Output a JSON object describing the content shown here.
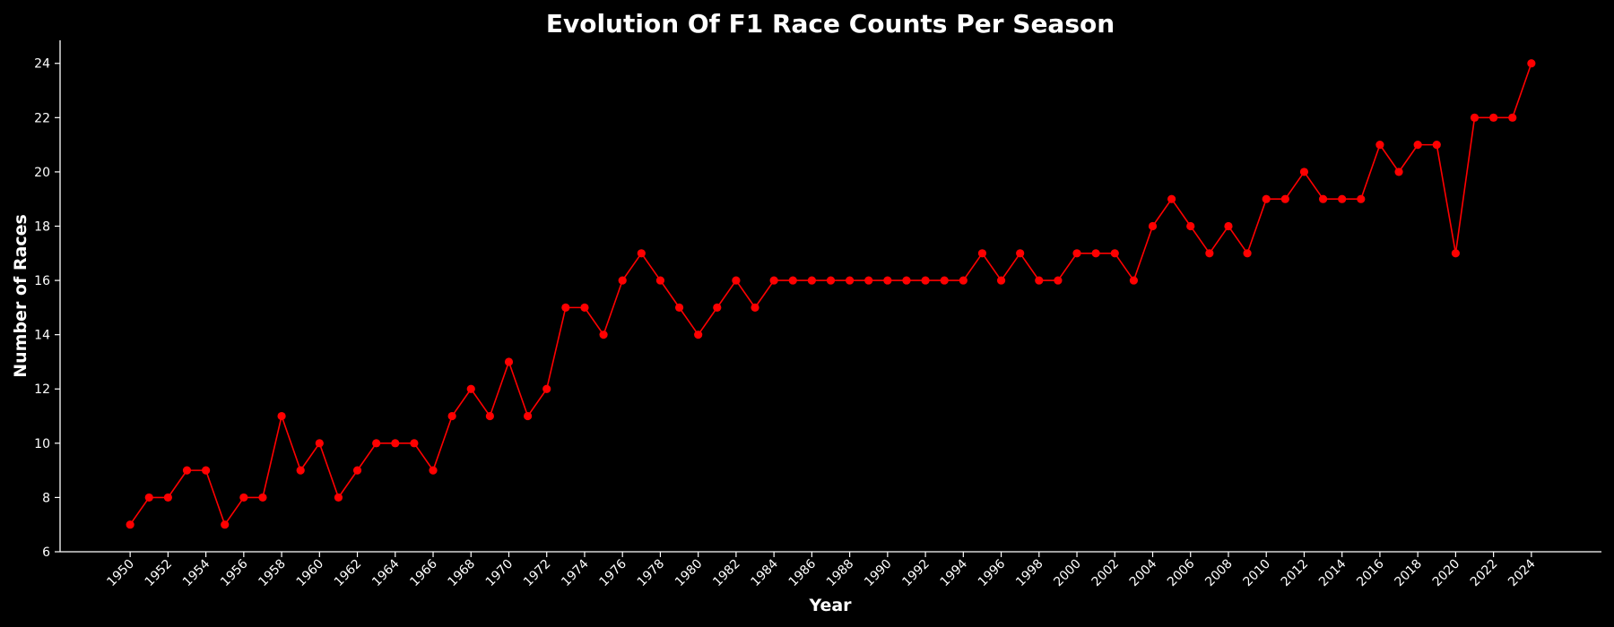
{
  "chart_data": {
    "type": "line",
    "title": "Evolution Of F1 Race Counts Per Season",
    "xlabel": "Year",
    "ylabel": "Number of Races",
    "x": [
      1950,
      1951,
      1952,
      1953,
      1954,
      1955,
      1956,
      1957,
      1958,
      1959,
      1960,
      1961,
      1962,
      1963,
      1964,
      1965,
      1966,
      1967,
      1968,
      1969,
      1970,
      1971,
      1972,
      1973,
      1974,
      1975,
      1976,
      1977,
      1978,
      1979,
      1980,
      1981,
      1982,
      1983,
      1984,
      1985,
      1986,
      1987,
      1988,
      1989,
      1990,
      1991,
      1992,
      1993,
      1994,
      1995,
      1996,
      1997,
      1998,
      1999,
      2000,
      2001,
      2002,
      2003,
      2004,
      2005,
      2006,
      2007,
      2008,
      2009,
      2010,
      2011,
      2012,
      2013,
      2014,
      2015,
      2016,
      2017,
      2018,
      2019,
      2020,
      2021,
      2022,
      2023,
      2024
    ],
    "series": [
      {
        "values": [
          7,
          8,
          8,
          9,
          9,
          7,
          8,
          8,
          11,
          9,
          10,
          8,
          9,
          10,
          10,
          10,
          9,
          11,
          12,
          11,
          13,
          11,
          12,
          15,
          15,
          14,
          16,
          17,
          16,
          15,
          14,
          15,
          16,
          15,
          16,
          16,
          16,
          16,
          16,
          16,
          16,
          16,
          16,
          16,
          16,
          17,
          16,
          17,
          16,
          16,
          17,
          17,
          17,
          16,
          18,
          19,
          18,
          17,
          18,
          17,
          19,
          19,
          20,
          19,
          19,
          19,
          21,
          20,
          21,
          21,
          17,
          22,
          22,
          22,
          24
        ],
        "color": "#ff0000"
      }
    ],
    "x_ticks": [
      "1950",
      "1952",
      "1954",
      "1956",
      "1958",
      "1960",
      "1962",
      "1964",
      "1966",
      "1968",
      "1970",
      "1972",
      "1974",
      "1976",
      "1978",
      "1980",
      "1982",
      "1984",
      "1986",
      "1988",
      "1990",
      "1992",
      "1994",
      "1996",
      "1998",
      "2000",
      "2002",
      "2004",
      "2006",
      "2008",
      "2010",
      "2012",
      "2014",
      "2016",
      "2018",
      "2020",
      "2022",
      "2024"
    ],
    "y_ticks": [
      "6",
      "8",
      "10",
      "12",
      "14",
      "16",
      "18",
      "20",
      "22",
      "24"
    ],
    "xlim": [
      1946.3,
      2027.7
    ],
    "ylim": [
      6,
      24.85
    ],
    "grid": false,
    "background": "#000000",
    "axis_color": "#ffffff"
  }
}
